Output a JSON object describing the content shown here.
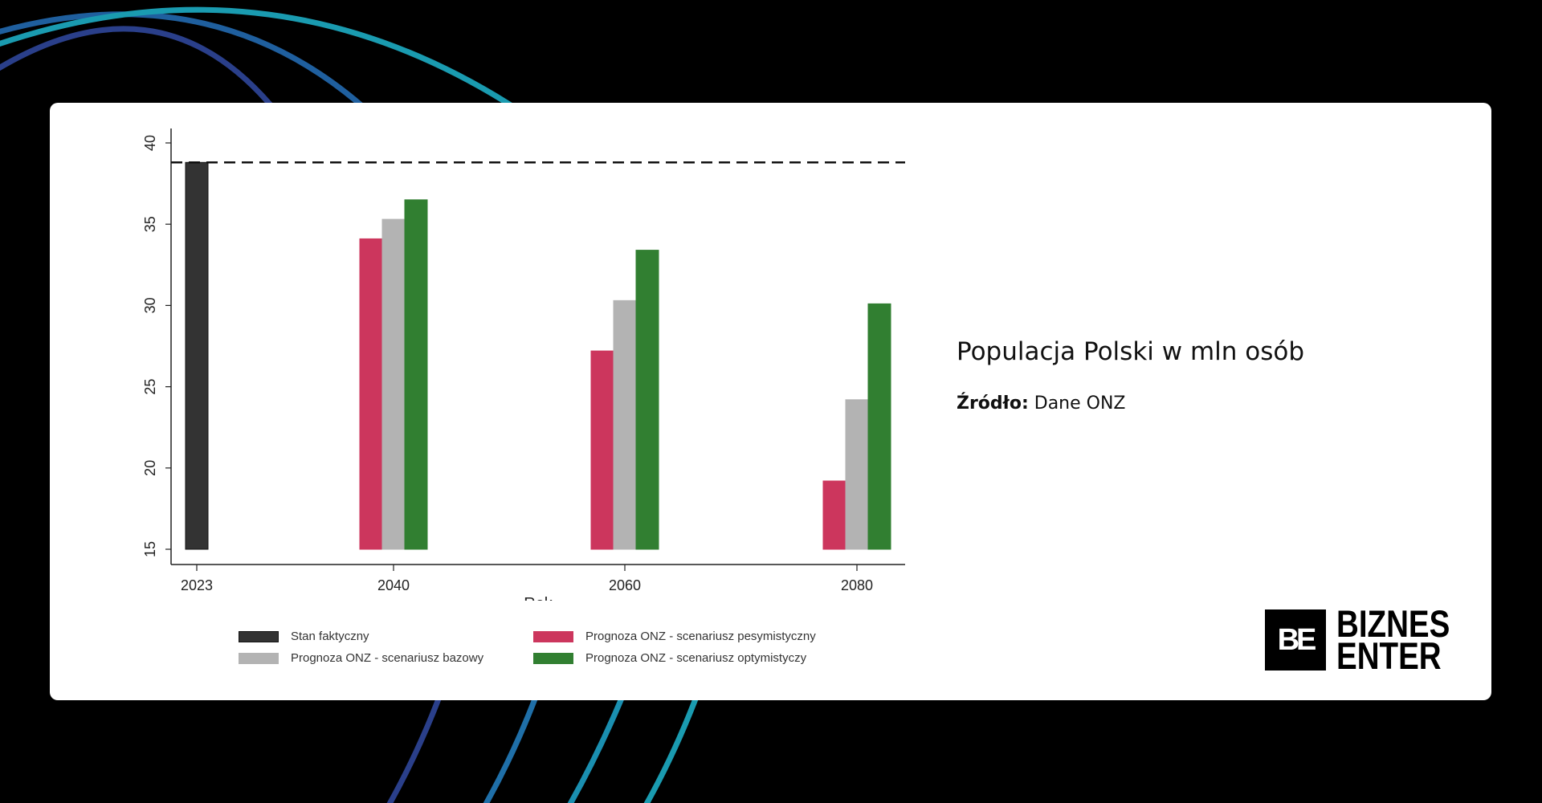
{
  "header": {
    "title": "Populacja Polski w mln osób",
    "source_label": "Źródło:",
    "source_value": "Dane ONZ"
  },
  "logo": {
    "mark": "BE",
    "line1": "BIZNES",
    "line2": "ENTER"
  },
  "colors": {
    "actual": "#333333",
    "pessimistic": "#cc365d",
    "base": "#b3b3b3",
    "optimistic": "#317f31"
  },
  "chart_data": {
    "type": "bar",
    "title": "Populacja Polski w mln osób",
    "xlabel": "Rok",
    "ylabel": "",
    "ylim": [
      15,
      40
    ],
    "yticks": [
      "15",
      "20",
      "25",
      "30",
      "35",
      "40"
    ],
    "categories": [
      "2023",
      "2040",
      "2060",
      "2080"
    ],
    "series": [
      {
        "name": "Stan faktyczny",
        "color": "#333333",
        "values": [
          38.8,
          null,
          null,
          null
        ]
      },
      {
        "name": "Prognoza ONZ - scenariusz pesymistyczny",
        "color": "#cc365d",
        "values": [
          null,
          34.1,
          27.2,
          19.2
        ]
      },
      {
        "name": "Prognoza ONZ - scenariusz bazowy",
        "color": "#b3b3b3",
        "values": [
          null,
          35.3,
          30.3,
          24.2
        ]
      },
      {
        "name": "Prognoza ONZ - scenariusz optymistyczy",
        "color": "#317f31",
        "values": [
          null,
          36.5,
          33.4,
          30.1
        ]
      }
    ],
    "reference_line": {
      "value": 38.8,
      "style": "dashed"
    },
    "grid": false,
    "legend_placement": "bottom"
  }
}
